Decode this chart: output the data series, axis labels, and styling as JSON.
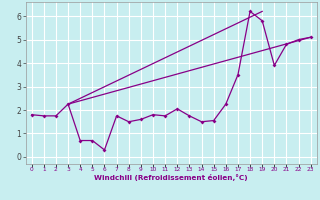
{
  "background_color": "#c8eef0",
  "grid_color": "#ffffff",
  "line_color": "#880088",
  "xlabel": "Windchill (Refroidissement éolien,°C)",
  "xlabel_color": "#880088",
  "xtick_labels": [
    "0",
    "1",
    "2",
    "3",
    "4",
    "5",
    "6",
    "7",
    "8",
    "9",
    "10",
    "11",
    "12",
    "13",
    "14",
    "15",
    "16",
    "17",
    "18",
    "19",
    "20",
    "21",
    "22",
    "23"
  ],
  "ylim": [
    -0.3,
    6.6
  ],
  "xlim": [
    -0.5,
    23.5
  ],
  "yticks": [
    0,
    1,
    2,
    3,
    4,
    5,
    6
  ],
  "series1_x": [
    0,
    1,
    2,
    3,
    4,
    5,
    6,
    7,
    8,
    9,
    10,
    11,
    12,
    13,
    14,
    15,
    16,
    17,
    18,
    19,
    20,
    21,
    22,
    23
  ],
  "series1_y": [
    1.8,
    1.75,
    1.75,
    2.25,
    0.7,
    0.7,
    0.3,
    1.75,
    1.5,
    1.6,
    1.8,
    1.75,
    2.05,
    1.75,
    1.5,
    1.55,
    2.25,
    3.5,
    6.2,
    5.8,
    3.9,
    4.8,
    5.0,
    5.1
  ],
  "series2_x": [
    3,
    23
  ],
  "series2_y": [
    2.25,
    5.1
  ],
  "series3_x": [
    3,
    19
  ],
  "series3_y": [
    2.25,
    6.2
  ],
  "ylabel_color": "#555555"
}
